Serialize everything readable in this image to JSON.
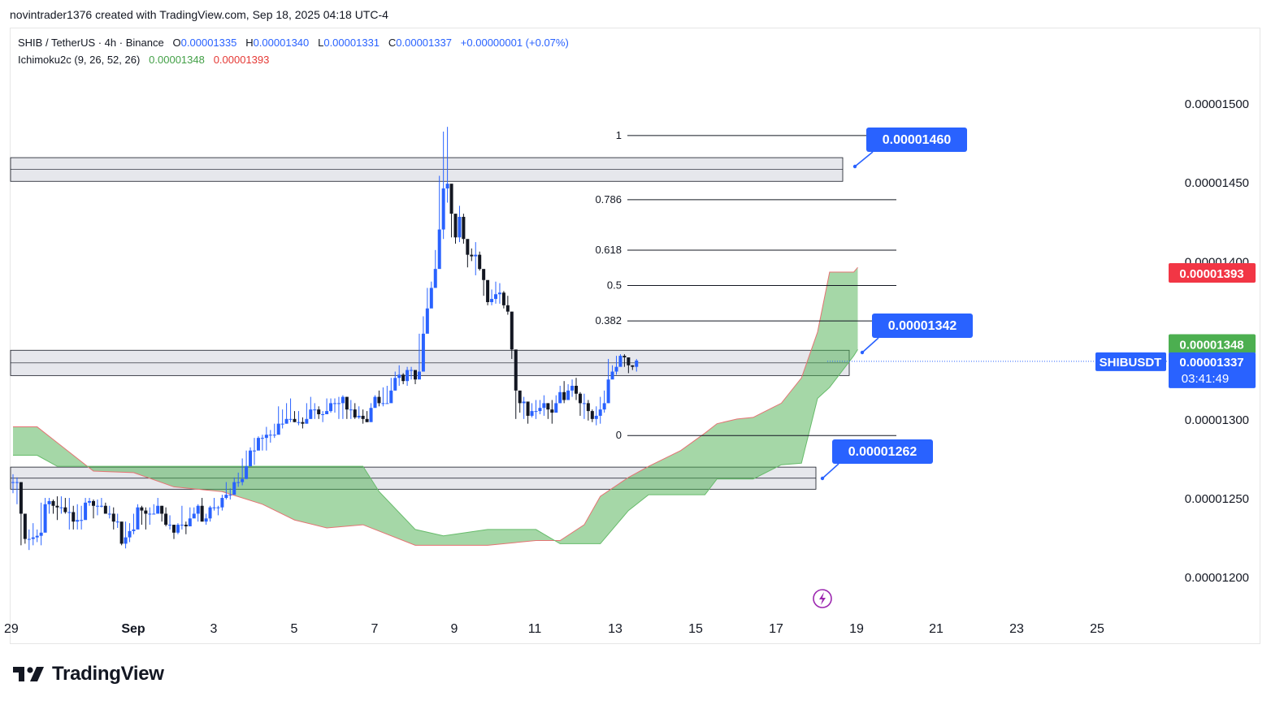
{
  "attribution": "novintrader1376 created with TradingView.com, Sep 18, 2025 04:18 UTC-4",
  "legend": {
    "symbol_line": "SHIB / TetherUS · 4h · Binance",
    "o_label": "O",
    "o_value": "0.00001335",
    "h_label": "H",
    "h_value": "0.00001340",
    "l_label": "L",
    "l_value": "0.00001331",
    "c_label": "C",
    "c_value": "0.00001337",
    "change": "+0.00000001 (+0.07%)",
    "indicator": "Ichimoku2c (9, 26, 52, 26)",
    "ind_value_1": "0.00001348",
    "ind_value_2": "0.00001393"
  },
  "branding": "TradingView",
  "colors": {
    "up": "#2962ff",
    "down": "#131722",
    "cloud": "#4caf50",
    "cloud_edge": "#e57373",
    "label_blue": "#2962ff",
    "badge_red": "#f23645",
    "badge_green": "#4caf50",
    "zone": "#d1d4dc"
  },
  "chart_data": {
    "type": "candlestick",
    "symbol": "SHIBUSDT",
    "timeframe": "4h",
    "ylim": [
      1.18e-05,
      1.5e-05
    ],
    "y_ticks": [
      "0.00001500",
      "0.00001450",
      "0.00001400",
      "0.00001350",
      "0.00001300",
      "0.00001250",
      "0.00001200"
    ],
    "x_ticks": [
      "29",
      "Sep",
      "3",
      "5",
      "7",
      "9",
      "11",
      "13",
      "15",
      "17",
      "19",
      "21",
      "23",
      "25"
    ],
    "last_price": "0.00001337",
    "countdown": "03:41:49",
    "price_badges": [
      {
        "text": "0.00001393",
        "value": 1.393e-05,
        "color": "#f23645"
      },
      {
        "text": "0.00001348",
        "value": 1.348e-05,
        "color": "#4caf50"
      }
    ],
    "price_labels": [
      {
        "text": "0.00001460",
        "value": 1.46e-05
      },
      {
        "text": "0.00001342",
        "value": 1.342e-05
      },
      {
        "text": "0.00001262",
        "value": 1.262e-05
      }
    ],
    "fibonacci": {
      "high": 1.48e-05,
      "low": 1.29e-05,
      "levels": [
        {
          "label": "1",
          "ratio": 1
        },
        {
          "label": "0.786",
          "ratio": 0.786
        },
        {
          "label": "0.618",
          "ratio": 0.618
        },
        {
          "label": "0.5",
          "ratio": 0.5
        },
        {
          "label": "0.382",
          "ratio": 0.382
        },
        {
          "label": "0",
          "ratio": 0
        }
      ]
    },
    "zones": [
      {
        "top": 1.466e-05,
        "bottom": 1.451e-05
      },
      {
        "top": 1.344e-05,
        "bottom": 1.328e-05
      },
      {
        "top": 1.27e-05,
        "bottom": 1.256e-05
      }
    ],
    "cloud_upper": [
      [
        0,
        1.2955
      ],
      [
        6,
        1.2955
      ],
      [
        11,
        1.2855
      ],
      [
        20,
        1.2675
      ],
      [
        30,
        1.2665
      ],
      [
        40,
        1.2575
      ],
      [
        52,
        1.2545
      ],
      [
        62,
        1.2465
      ],
      [
        70,
        1.2365
      ],
      [
        78,
        1.2315
      ],
      [
        87,
        1.2335
      ],
      [
        100,
        1.2205
      ],
      [
        107,
        1.2205
      ],
      [
        118,
        1.2205
      ],
      [
        130,
        1.2235
      ],
      [
        136,
        1.2235
      ],
      [
        142,
        1.2335
      ],
      [
        146,
        1.2515
      ],
      [
        153,
        1.2635
      ],
      [
        158,
        1.2705
      ],
      [
        166,
        1.2805
      ],
      [
        172,
        1.2915
      ],
      [
        175,
        1.2975
      ],
      [
        180,
        1.3005
      ],
      [
        184,
        1.3015
      ],
      [
        191,
        1.3105
      ],
      [
        196,
        1.3265
      ],
      [
        200,
        1.3555
      ],
      [
        203,
        1.3935
      ],
      [
        209,
        1.3935
      ],
      [
        210,
        1.3965
      ]
    ],
    "cloud_lower": [
      [
        0,
        1.2775
      ],
      [
        6,
        1.2775
      ],
      [
        11,
        1.2705
      ],
      [
        20,
        1.2705
      ],
      [
        30,
        1.2705
      ],
      [
        40,
        1.2705
      ],
      [
        52,
        1.2705
      ],
      [
        62,
        1.2705
      ],
      [
        70,
        1.2705
      ],
      [
        78,
        1.2705
      ],
      [
        87,
        1.2705
      ],
      [
        91,
        1.2545
      ],
      [
        100,
        1.2305
      ],
      [
        107,
        1.2265
      ],
      [
        118,
        1.2305
      ],
      [
        130,
        1.2305
      ],
      [
        136,
        1.2215
      ],
      [
        142,
        1.2215
      ],
      [
        146,
        1.2215
      ],
      [
        153,
        1.2425
      ],
      [
        158,
        1.2525
      ],
      [
        166,
        1.2525
      ],
      [
        172,
        1.2525
      ],
      [
        175,
        1.2625
      ],
      [
        180,
        1.2625
      ],
      [
        184,
        1.2625
      ],
      [
        191,
        1.2715
      ],
      [
        196,
        1.2725
      ],
      [
        200,
        1.3135
      ],
      [
        203,
        1.3205
      ],
      [
        209,
        1.3405
      ],
      [
        210,
        1.3445
      ]
    ],
    "candles": [
      [
        1.2605,
        1.2605,
        1.2655,
        1.2535
      ],
      [
        1.2605,
        1.2605,
        1.2635,
        1.2465
      ],
      [
        1.2405,
        1.2405,
        1.2455,
        1.2205
      ],
      [
        1.2245,
        1.2245,
        1.2345,
        1.2215
      ],
      [
        1.2245,
        1.2245,
        1.2305,
        1.2175
      ],
      [
        1.2255,
        1.2255,
        1.2345,
        1.2205
      ],
      [
        1.2265,
        1.2265,
        1.2305,
        1.2225
      ],
      [
        1.2285,
        1.2285,
        1.2475,
        1.2205
      ],
      [
        1.2465,
        1.2465,
        1.2505,
        1.2445
      ],
      [
        1.2485,
        1.2485,
        1.2505,
        1.2405
      ],
      [
        1.2455,
        1.2455,
        1.2495,
        1.2405
      ],
      [
        1.2445,
        1.2445,
        1.2515,
        1.2365
      ],
      [
        1.2445,
        1.2445,
        1.2515,
        1.2405
      ],
      [
        1.2415,
        1.2415,
        1.2505,
        1.2405
      ],
      [
        1.2415,
        1.2415,
        1.2505,
        1.2305
      ],
      [
        1.2355,
        1.2355,
        1.2455,
        1.2305
      ],
      [
        1.2365,
        1.2365,
        1.2465,
        1.2305
      ],
      [
        1.2365,
        1.2365,
        1.2455,
        1.2305
      ],
      [
        1.2475,
        1.2475,
        1.2505,
        1.2405
      ],
      [
        1.2485,
        1.2485,
        1.2505,
        1.2455
      ],
      [
        1.2455,
        1.2455,
        1.2495,
        1.2375
      ],
      [
        1.2455,
        1.2455,
        1.2495,
        1.2395
      ],
      [
        1.2455,
        1.2455,
        1.2505,
        1.2445
      ],
      [
        1.2405,
        1.2405,
        1.2475,
        1.2405
      ],
      [
        1.2405,
        1.2405,
        1.2455,
        1.2375
      ],
      [
        1.2355,
        1.2355,
        1.2445,
        1.2305
      ],
      [
        1.2355,
        1.2355,
        1.2405,
        1.2315
      ],
      [
        1.2215,
        1.2215,
        1.2315,
        1.2205
      ],
      [
        1.2255,
        1.2255,
        1.2355,
        1.2185
      ],
      [
        1.2295,
        1.2295,
        1.2345,
        1.2225
      ],
      [
        1.2305,
        1.2305,
        1.2405,
        1.2275
      ],
      [
        1.2445,
        1.2445,
        1.2465,
        1.2405
      ],
      [
        1.2425,
        1.2425,
        1.2455,
        1.2335
      ],
      [
        1.2405,
        1.2405,
        1.2445,
        1.2305
      ],
      [
        1.2405,
        1.2405,
        1.2445,
        1.2335
      ],
      [
        1.2405,
        1.2405,
        1.2465,
        1.2405
      ],
      [
        1.2455,
        1.2455,
        1.2505,
        1.2415
      ],
      [
        1.2405,
        1.2405,
        1.2455,
        1.2355
      ],
      [
        1.2335,
        1.2335,
        1.2445,
        1.2325
      ],
      [
        1.2335,
        1.2335,
        1.2395,
        1.2305
      ],
      [
        1.2285,
        1.2285,
        1.2325,
        1.2245
      ],
      [
        1.2335,
        1.2335,
        1.2345,
        1.2275
      ],
      [
        1.2335,
        1.2335,
        1.2455,
        1.2305
      ],
      [
        1.2325,
        1.2325,
        1.2355,
        1.2275
      ],
      [
        1.2375,
        1.2375,
        1.2445,
        1.2355
      ],
      [
        1.2405,
        1.2405,
        1.2445,
        1.2405
      ],
      [
        1.2455,
        1.2455,
        1.2465,
        1.2355
      ],
      [
        1.2355,
        1.2355,
        1.2505,
        1.2355
      ],
      [
        1.2375,
        1.2375,
        1.2405,
        1.2335
      ],
      [
        1.2445,
        1.2445,
        1.2455,
        1.2355
      ],
      [
        1.2445,
        1.2445,
        1.2505,
        1.2425
      ],
      [
        1.2445,
        1.2445,
        1.2455,
        1.2395
      ],
      [
        1.2505,
        1.2505,
        1.2525,
        1.2425
      ],
      [
        1.2525,
        1.2525,
        1.2605,
        1.2495
      ],
      [
        1.2525,
        1.2525,
        1.2565,
        1.2495
      ],
      [
        1.2605,
        1.2605,
        1.2635,
        1.2545
      ],
      [
        1.2605,
        1.2605,
        1.2665,
        1.2575
      ],
      [
        1.2625,
        1.2625,
        1.2755,
        1.2585
      ],
      [
        1.2705,
        1.2705,
        1.2805,
        1.2625
      ],
      [
        1.2805,
        1.2805,
        1.2825,
        1.2705
      ],
      [
        1.2805,
        1.2805,
        1.2885,
        1.2715
      ],
      [
        1.2885,
        1.2885,
        1.2895,
        1.2855
      ],
      [
        1.2885,
        1.2885,
        1.2905,
        1.2805
      ],
      [
        1.2905,
        1.2905,
        1.2955,
        1.2805
      ],
      [
        1.2905,
        1.2905,
        1.2935,
        1.2855
      ],
      [
        1.2905,
        1.2905,
        1.2975,
        1.2885
      ],
      [
        1.2975,
        1.2975,
        1.3085,
        1.2955
      ],
      [
        1.2975,
        1.2975,
        1.3065,
        1.2945
      ],
      [
        1.3005,
        1.3005,
        1.3105,
        1.2975
      ],
      [
        1.3005,
        1.3005,
        1.3135,
        1.2985
      ],
      [
        1.2985,
        1.2985,
        1.3055,
        1.2985
      ],
      [
        1.2985,
        1.2985,
        1.3055,
        1.2965
      ],
      [
        1.2975,
        1.2975,
        1.3015,
        1.2945
      ],
      [
        1.3005,
        1.3005,
        1.3105,
        1.2975
      ],
      [
        1.3065,
        1.3065,
        1.3145,
        1.3005
      ],
      [
        1.3065,
        1.3065,
        1.3105,
        1.3005
      ],
      [
        1.3035,
        1.3035,
        1.3085,
        1.3005
      ],
      [
        1.3035,
        1.3035,
        1.3055,
        1.2985
      ],
      [
        1.3055,
        1.3055,
        1.3135,
        1.3045
      ],
      [
        1.3105,
        1.3105,
        1.3135,
        1.3045
      ],
      [
        1.3105,
        1.3105,
        1.3135,
        1.3045
      ],
      [
        1.3105,
        1.3105,
        1.3145,
        1.3005
      ],
      [
        1.3145,
        1.3145,
        1.3155,
        1.3005
      ],
      [
        1.3065,
        1.3065,
        1.3145,
        1.3005
      ],
      [
        1.3065,
        1.3065,
        1.3125,
        1.3005
      ],
      [
        1.3015,
        1.3015,
        1.3105,
        1.3005
      ],
      [
        1.3025,
        1.3025,
        1.3085,
        1.3005
      ],
      [
        1.3005,
        1.3005,
        1.3065,
        1.2975
      ],
      [
        1.2985,
        1.2985,
        1.3055,
        1.2985
      ],
      [
        1.3075,
        1.3075,
        1.3105,
        1.3035
      ],
      [
        1.3145,
        1.3145,
        1.3155,
        1.3105
      ],
      [
        1.3105,
        1.3105,
        1.3185,
        1.3085
      ],
      [
        1.3105,
        1.3105,
        1.3205,
        1.3085
      ],
      [
        1.3105,
        1.3105,
        1.3215,
        1.3105
      ],
      [
        1.3185,
        1.3185,
        1.3265,
        1.3145
      ],
      [
        1.3265,
        1.3265,
        1.3305,
        1.3185
      ],
      [
        1.3285,
        1.3285,
        1.3345,
        1.3215
      ],
      [
        1.3245,
        1.3245,
        1.3295,
        1.3225
      ],
      [
        1.3315,
        1.3315,
        1.3335,
        1.3215
      ],
      [
        1.3315,
        1.3315,
        1.3335,
        1.3255
      ],
      [
        1.3255,
        1.3255,
        1.3305,
        1.3225
      ],
      [
        1.3305,
        1.3305,
        1.3545,
        1.3285
      ],
      [
        1.3545,
        1.3545,
        1.3655,
        1.3525
      ],
      [
        1.3705,
        1.3705,
        1.3835,
        1.3685
      ],
      [
        1.3835,
        1.3835,
        1.3875,
        1.3785
      ],
      [
        1.3955,
        1.3955,
        1.4075,
        1.3885
      ],
      [
        1.4205,
        1.4205,
        1.4545,
        1.4035
      ],
      [
        1.4465,
        1.4465,
        1.4825,
        1.4145
      ],
      [
        1.4495,
        1.4495,
        1.4855,
        1.4375
      ],
      [
        1.4305,
        1.4305,
        1.4425,
        1.4155
      ],
      [
        1.4155,
        1.4155,
        1.4275,
        1.4115
      ],
      [
        1.4285,
        1.4285,
        1.4355,
        1.4125
      ],
      [
        1.4145,
        1.4145,
        1.4305,
        1.4115
      ],
      [
        1.4045,
        1.4045,
        1.4105,
        1.3965
      ],
      [
        1.4035,
        1.4035,
        1.4085,
        1.4005
      ],
      [
        1.4045,
        1.4045,
        1.4125,
        1.3915
      ],
      [
        1.3955,
        1.3955,
        1.4065,
        1.3945
      ],
      [
        1.3885,
        1.3885,
        1.3945,
        1.3785
      ],
      [
        1.3745,
        1.3745,
        1.3865,
        1.3725
      ],
      [
        1.3765,
        1.3765,
        1.3825,
        1.3725
      ],
      [
        1.3795,
        1.3795,
        1.3875,
        1.3735
      ],
      [
        1.3805,
        1.3805,
        1.3865,
        1.3735
      ],
      [
        1.3725,
        1.3725,
        1.3815,
        1.3705
      ],
      [
        1.3685,
        1.3685,
        1.3785,
        1.3665
      ],
      [
        1.3445,
        1.3445,
        1.3605,
        1.3385
      ],
      [
        1.3185,
        1.3185,
        1.3235,
        1.3005
      ],
      [
        1.3105,
        1.3105,
        1.3145,
        1.3045
      ],
      [
        1.3115,
        1.3115,
        1.3145,
        1.3005
      ],
      [
        1.3025,
        1.3025,
        1.3075,
        1.2975
      ],
      [
        1.3055,
        1.3055,
        1.3105,
        1.3015
      ],
      [
        1.3055,
        1.3055,
        1.3125,
        1.3005
      ],
      [
        1.3075,
        1.3075,
        1.3125,
        1.3035
      ],
      [
        1.3105,
        1.3105,
        1.3155,
        1.3025
      ],
      [
        1.3065,
        1.3065,
        1.3105,
        1.3005
      ],
      [
        1.3045,
        1.3045,
        1.3125,
        1.2975
      ],
      [
        1.3105,
        1.3105,
        1.3155,
        1.3045
      ],
      [
        1.3175,
        1.3175,
        1.3215,
        1.3105
      ],
      [
        1.3125,
        1.3125,
        1.3245,
        1.3105
      ],
      [
        1.3185,
        1.3185,
        1.3225,
        1.3125
      ],
      [
        1.3215,
        1.3215,
        1.3255,
        1.3145
      ],
      [
        1.3165,
        1.3165,
        1.3265,
        1.3125
      ],
      [
        1.3105,
        1.3105,
        1.3175,
        1.3025
      ],
      [
        1.3105,
        1.3105,
        1.3165,
        1.3005
      ],
      [
        1.3055,
        1.3055,
        1.3125,
        1.2995
      ],
      [
        1.3005,
        1.3005,
        1.3065,
        1.2985
      ],
      [
        1.3025,
        1.3025,
        1.3085,
        1.2965
      ],
      [
        1.3065,
        1.3065,
        1.3145,
        1.2975
      ],
      [
        1.3105,
        1.3105,
        1.3185,
        1.3045
      ],
      [
        1.3255,
        1.3255,
        1.3385,
        1.3105
      ],
      [
        1.3305,
        1.3305,
        1.3345,
        1.3265
      ],
      [
        1.3335,
        1.3335,
        1.3405,
        1.3285
      ],
      [
        1.3405,
        1.3405,
        1.3415,
        1.3345
      ],
      [
        1.3395,
        1.3395,
        1.3415,
        1.3335
      ],
      [
        1.3345,
        1.3345,
        1.3395,
        1.3295
      ],
      [
        1.3335,
        1.3335,
        1.3345,
        1.3315
      ],
      [
        1.3375,
        1.3375,
        1.3385,
        1.3305
      ]
    ]
  }
}
